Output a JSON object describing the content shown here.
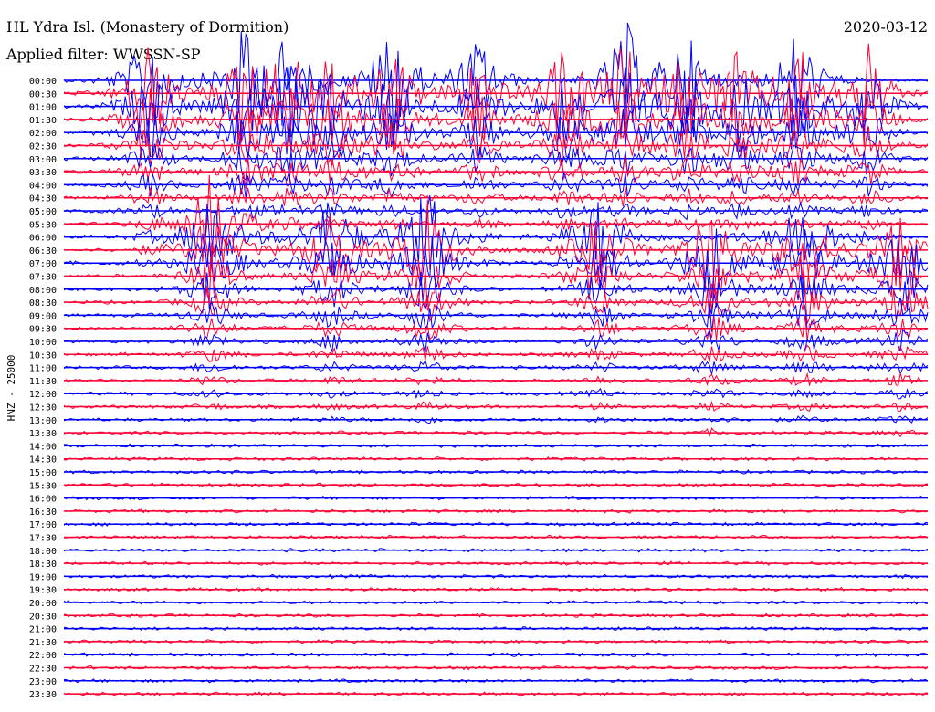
{
  "header": {
    "station": "HL Ydra Isl. (Monastery of Dormition)",
    "filter": "Applied filter: WWSSN-SP",
    "date": "2020-03-12"
  },
  "chart_data": {
    "type": "line",
    "description_kind": "helicorder seismogram",
    "ylabel": "HNZ - 25000",
    "rows": [
      "00:00",
      "00:30",
      "01:00",
      "01:30",
      "02:00",
      "02:30",
      "03:00",
      "03:30",
      "04:00",
      "04:30",
      "05:00",
      "05:30",
      "06:00",
      "06:30",
      "07:00",
      "07:30",
      "08:00",
      "08:30",
      "09:00",
      "09:30",
      "10:00",
      "10:30",
      "11:00",
      "11:30",
      "12:00",
      "12:30",
      "13:00",
      "13:30",
      "14:00",
      "14:30",
      "15:00",
      "15:30",
      "16:00",
      "16:30",
      "17:00",
      "17:30",
      "18:00",
      "18:30",
      "19:00",
      "19:30",
      "20:00",
      "20:30",
      "21:00",
      "21:30",
      "22:00",
      "22:30",
      "23:00",
      "23:30"
    ],
    "trace_colors": [
      "#0000ff",
      "#ff0033"
    ],
    "bursts": [
      {
        "row": 0.4,
        "pos": 0.1,
        "amp": 7.0
      },
      {
        "row": 1.0,
        "pos": 0.21,
        "amp": 6.5
      },
      {
        "row": 0.8,
        "pos": 0.26,
        "amp": 5.5
      },
      {
        "row": 1.5,
        "pos": 0.31,
        "amp": 5.0
      },
      {
        "row": 0.2,
        "pos": 0.38,
        "amp": 7.5
      },
      {
        "row": 0.6,
        "pos": 0.48,
        "amp": 5.5
      },
      {
        "row": 1.2,
        "pos": 0.58,
        "amp": 6.0
      },
      {
        "row": 0.3,
        "pos": 0.65,
        "amp": 7.0
      },
      {
        "row": 0.9,
        "pos": 0.72,
        "amp": 6.0
      },
      {
        "row": 1.4,
        "pos": 0.78,
        "amp": 5.0
      },
      {
        "row": 0.5,
        "pos": 0.85,
        "amp": 6.5
      },
      {
        "row": 1.1,
        "pos": 0.93,
        "amp": 6.0
      },
      {
        "row": 12.0,
        "pos": 0.17,
        "amp": 6.0
      },
      {
        "row": 12.5,
        "pos": 0.31,
        "amp": 5.0
      },
      {
        "row": 13.0,
        "pos": 0.42,
        "amp": 6.0
      },
      {
        "row": 12.2,
        "pos": 0.62,
        "amp": 5.0
      },
      {
        "row": 13.5,
        "pos": 0.75,
        "amp": 5.5
      },
      {
        "row": 12.8,
        "pos": 0.86,
        "amp": 6.0
      },
      {
        "row": 14.0,
        "pos": 0.97,
        "amp": 5.0
      }
    ],
    "grid": false,
    "legend": "none"
  }
}
